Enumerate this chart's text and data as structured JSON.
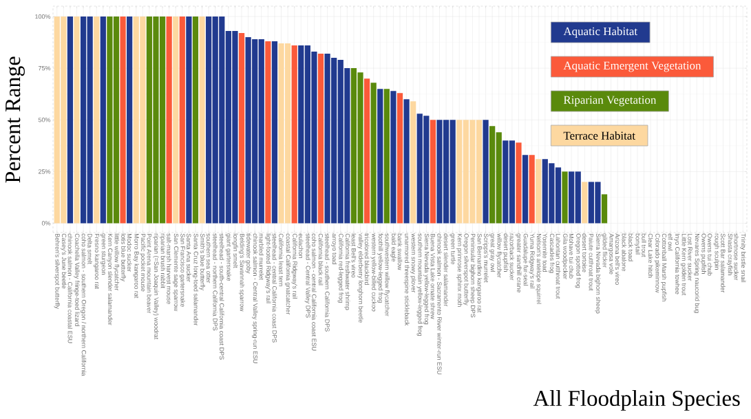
{
  "chart_data": {
    "type": "bar",
    "title": "All Floodplain Species",
    "ylabel": "Percent Range",
    "categories": [
      "Behren's silverspot butterfly",
      "Casey's June beetle",
      "chinook salmon - California coastal ESU",
      "Coachella Valley fringe-toed lizard",
      "coho salmon - southern Oregon / northern California",
      "Delta smelt",
      "Fresno kangaroo rat",
      "green sturgeon",
      "Kern Canyon slender salamander",
      "little willow flycatcher",
      "lotis blue butterfly",
      "Modoc sucker",
      "Morro Bay kangaroo rat",
      "Pacific pocket mouse",
      "Point Arena mountain beaver",
      "riparian (=San Joaquin Valley) woodrat",
      "riparian brush rabbit",
      "salt-marsh harvest mouse",
      "San Clemente sage sparrow",
      "San Francisco gartersnake",
      "Santa Ana sucker",
      "Santa Cruz long-toed salamander",
      "Smith's blue butterfly",
      "southern sea otter",
      "steelhead - northern California DPS",
      "steelhead - south-central California coast DPS",
      "giant gartersnake",
      "longfin smelt",
      "Belding's Savannah sparrow",
      "tidewater goby",
      "chinook salmon - Central Valley spring-run ESU",
      "marbled murrelet",
      "light-footed Ridgway's rail",
      "steelhead - central California coast DPS",
      "California least tern",
      "coastal California gnatcatcher",
      "California Ridgway's rail",
      "eulachon",
      "steelhead - Central Valley DPS",
      "coho salmon - central California coast ESU",
      "California black rail",
      "steelhead - southern California DPS",
      "arroyo toad",
      "California red-legged frog",
      "California freshwater shrimp",
      "least Bell's vireo",
      "valley elderberry longhorn beetle",
      "tricolored blackbird",
      "western yellow-billed cuckoo",
      "foothill yellow-legged frog",
      "southwestern willow flycatcher",
      "bald eagle",
      "bank swallow",
      "unarmored threespine stickleback",
      "western snowy plover",
      "southern mountain yellow-legged frog",
      "Sierra Nevada yellow-legged frog",
      "Buena Vista Lake ornate shrew",
      "chinook salmon - Sacramento River winter-run ESU",
      "desert slender salamander",
      "green turtle",
      "Kern primrose sphinx moth",
      "Oregon silverspot butterfly",
      "Peninsular bighorn sheep DPS",
      "San Bernardino kangaroo rat",
      "Scripps's murrelet",
      "great gray owl",
      "willow flycatcher",
      "desert pupfish",
      "razorback sucker",
      "greater sandhill crane",
      "Guadalupe fur-seal",
      "Yuma Ridgway's rail",
      "Nelson's antelope squirrel",
      "Yosemite toad",
      "Cascades frog",
      "Lahontan cutthroat trout",
      "Gila woodpecker",
      "Mohave tui chub",
      "Oregon spotted frog",
      "desert tortoise",
      "Paiute cutthroat trout",
      "Sierra Nevada bighorn sheep",
      "gilded flicker",
      "Amargosa vole",
      "Arizona bell's vireo",
      "black abalone",
      "black toad",
      "bonytail",
      "bull trout",
      "Clear Lake hitch",
      "Colorado pikeminnow",
      "Cottonball Marsh pupfish",
      "elf owl",
      "Inyo California towhee",
      "Little Kern golden trout",
      "Lost River sucker",
      "Nevares Spring naucorid bug",
      "Owens pupfish",
      "Owens tui chub",
      "rough sculpin",
      "Scott Bar salamander",
      "Shasta crayfish",
      "shortnose sucker",
      "Trinity bristle snail"
    ],
    "series": [
      {
        "name": "Aquatic Habitat",
        "color": "#213a8f",
        "values": [
          null,
          null,
          100,
          null,
          100,
          100,
          null,
          100,
          null,
          null,
          null,
          100,
          null,
          null,
          null,
          null,
          null,
          null,
          null,
          null,
          100,
          null,
          null,
          100,
          100,
          100,
          93,
          93,
          null,
          90,
          89,
          89,
          null,
          88,
          null,
          null,
          null,
          86,
          86,
          83,
          null,
          82,
          80,
          79,
          75,
          null,
          null,
          null,
          null,
          65,
          null,
          64,
          null,
          60,
          null,
          53,
          52,
          null,
          50,
          50,
          50,
          null,
          null,
          null,
          null,
          50,
          null,
          null,
          40,
          40,
          null,
          33,
          null,
          null,
          31,
          29,
          27,
          null,
          25,
          25,
          null,
          20,
          20,
          null,
          null,
          null,
          null,
          null,
          null,
          null,
          null,
          null,
          null,
          null,
          null,
          null,
          null,
          null,
          null,
          null,
          null,
          null,
          null,
          null,
          null
        ]
      },
      {
        "name": "Aquatic Emergent Vegetation",
        "color": "#fb5a3a",
        "values": [
          null,
          null,
          null,
          null,
          null,
          null,
          null,
          null,
          null,
          null,
          100,
          null,
          null,
          null,
          null,
          null,
          null,
          100,
          null,
          100,
          null,
          null,
          null,
          null,
          null,
          null,
          null,
          null,
          92,
          null,
          null,
          null,
          88,
          null,
          null,
          null,
          86,
          null,
          null,
          null,
          82,
          null,
          null,
          null,
          null,
          null,
          null,
          70,
          null,
          null,
          null,
          null,
          63,
          null,
          null,
          null,
          null,
          50,
          null,
          null,
          null,
          null,
          null,
          null,
          null,
          null,
          null,
          null,
          null,
          null,
          39,
          null,
          33,
          null,
          null,
          null,
          null,
          null,
          null,
          null,
          null,
          null,
          null,
          null,
          null,
          null,
          null,
          null,
          null,
          null,
          null,
          null,
          null,
          null,
          null,
          null,
          null,
          null,
          null,
          null,
          null,
          null,
          null,
          null,
          null
        ]
      },
      {
        "name": "Riparian Vegetation",
        "color": "#5a8a0c",
        "values": [
          null,
          null,
          null,
          null,
          null,
          null,
          null,
          null,
          100,
          100,
          null,
          null,
          null,
          null,
          100,
          100,
          100,
          null,
          null,
          null,
          null,
          100,
          null,
          null,
          null,
          null,
          null,
          null,
          null,
          null,
          null,
          null,
          null,
          null,
          null,
          null,
          null,
          null,
          null,
          null,
          null,
          null,
          null,
          null,
          null,
          75,
          73,
          null,
          68,
          null,
          65,
          null,
          null,
          null,
          null,
          null,
          null,
          null,
          null,
          null,
          null,
          null,
          null,
          null,
          null,
          null,
          47,
          44,
          null,
          null,
          null,
          null,
          null,
          null,
          null,
          null,
          null,
          25,
          null,
          null,
          null,
          null,
          null,
          14,
          null,
          null,
          null,
          null,
          null,
          null,
          null,
          null,
          null,
          null,
          null,
          null,
          null,
          null,
          null,
          null,
          null,
          null,
          null,
          null,
          null
        ]
      },
      {
        "name": "Terrace Habitat",
        "color": "#fdd8a0",
        "values": [
          100,
          100,
          null,
          100,
          null,
          null,
          100,
          null,
          null,
          null,
          null,
          null,
          100,
          100,
          null,
          null,
          null,
          null,
          100,
          null,
          null,
          null,
          100,
          null,
          null,
          null,
          null,
          null,
          null,
          null,
          null,
          null,
          null,
          null,
          87,
          87,
          null,
          null,
          null,
          null,
          null,
          null,
          null,
          null,
          null,
          null,
          null,
          null,
          null,
          null,
          null,
          null,
          null,
          null,
          59,
          null,
          null,
          null,
          null,
          null,
          null,
          50,
          50,
          50,
          50,
          null,
          null,
          null,
          null,
          null,
          null,
          null,
          null,
          31,
          null,
          null,
          null,
          null,
          null,
          null,
          20,
          null,
          null,
          null,
          null,
          null,
          null,
          null,
          null,
          null,
          null,
          null,
          null,
          null,
          null,
          null,
          null,
          null,
          null,
          null,
          null,
          null,
          null,
          null,
          null
        ]
      }
    ],
    "ylim": [
      -4.5,
      105
    ],
    "yticks": [
      {
        "value": 0,
        "label": "0%"
      },
      {
        "value": 25,
        "label": "25%"
      },
      {
        "value": 50,
        "label": "50%"
      },
      {
        "value": 75,
        "label": "75%"
      },
      {
        "value": 100,
        "label": "100%"
      }
    ],
    "grid": true,
    "legend": "top right"
  }
}
